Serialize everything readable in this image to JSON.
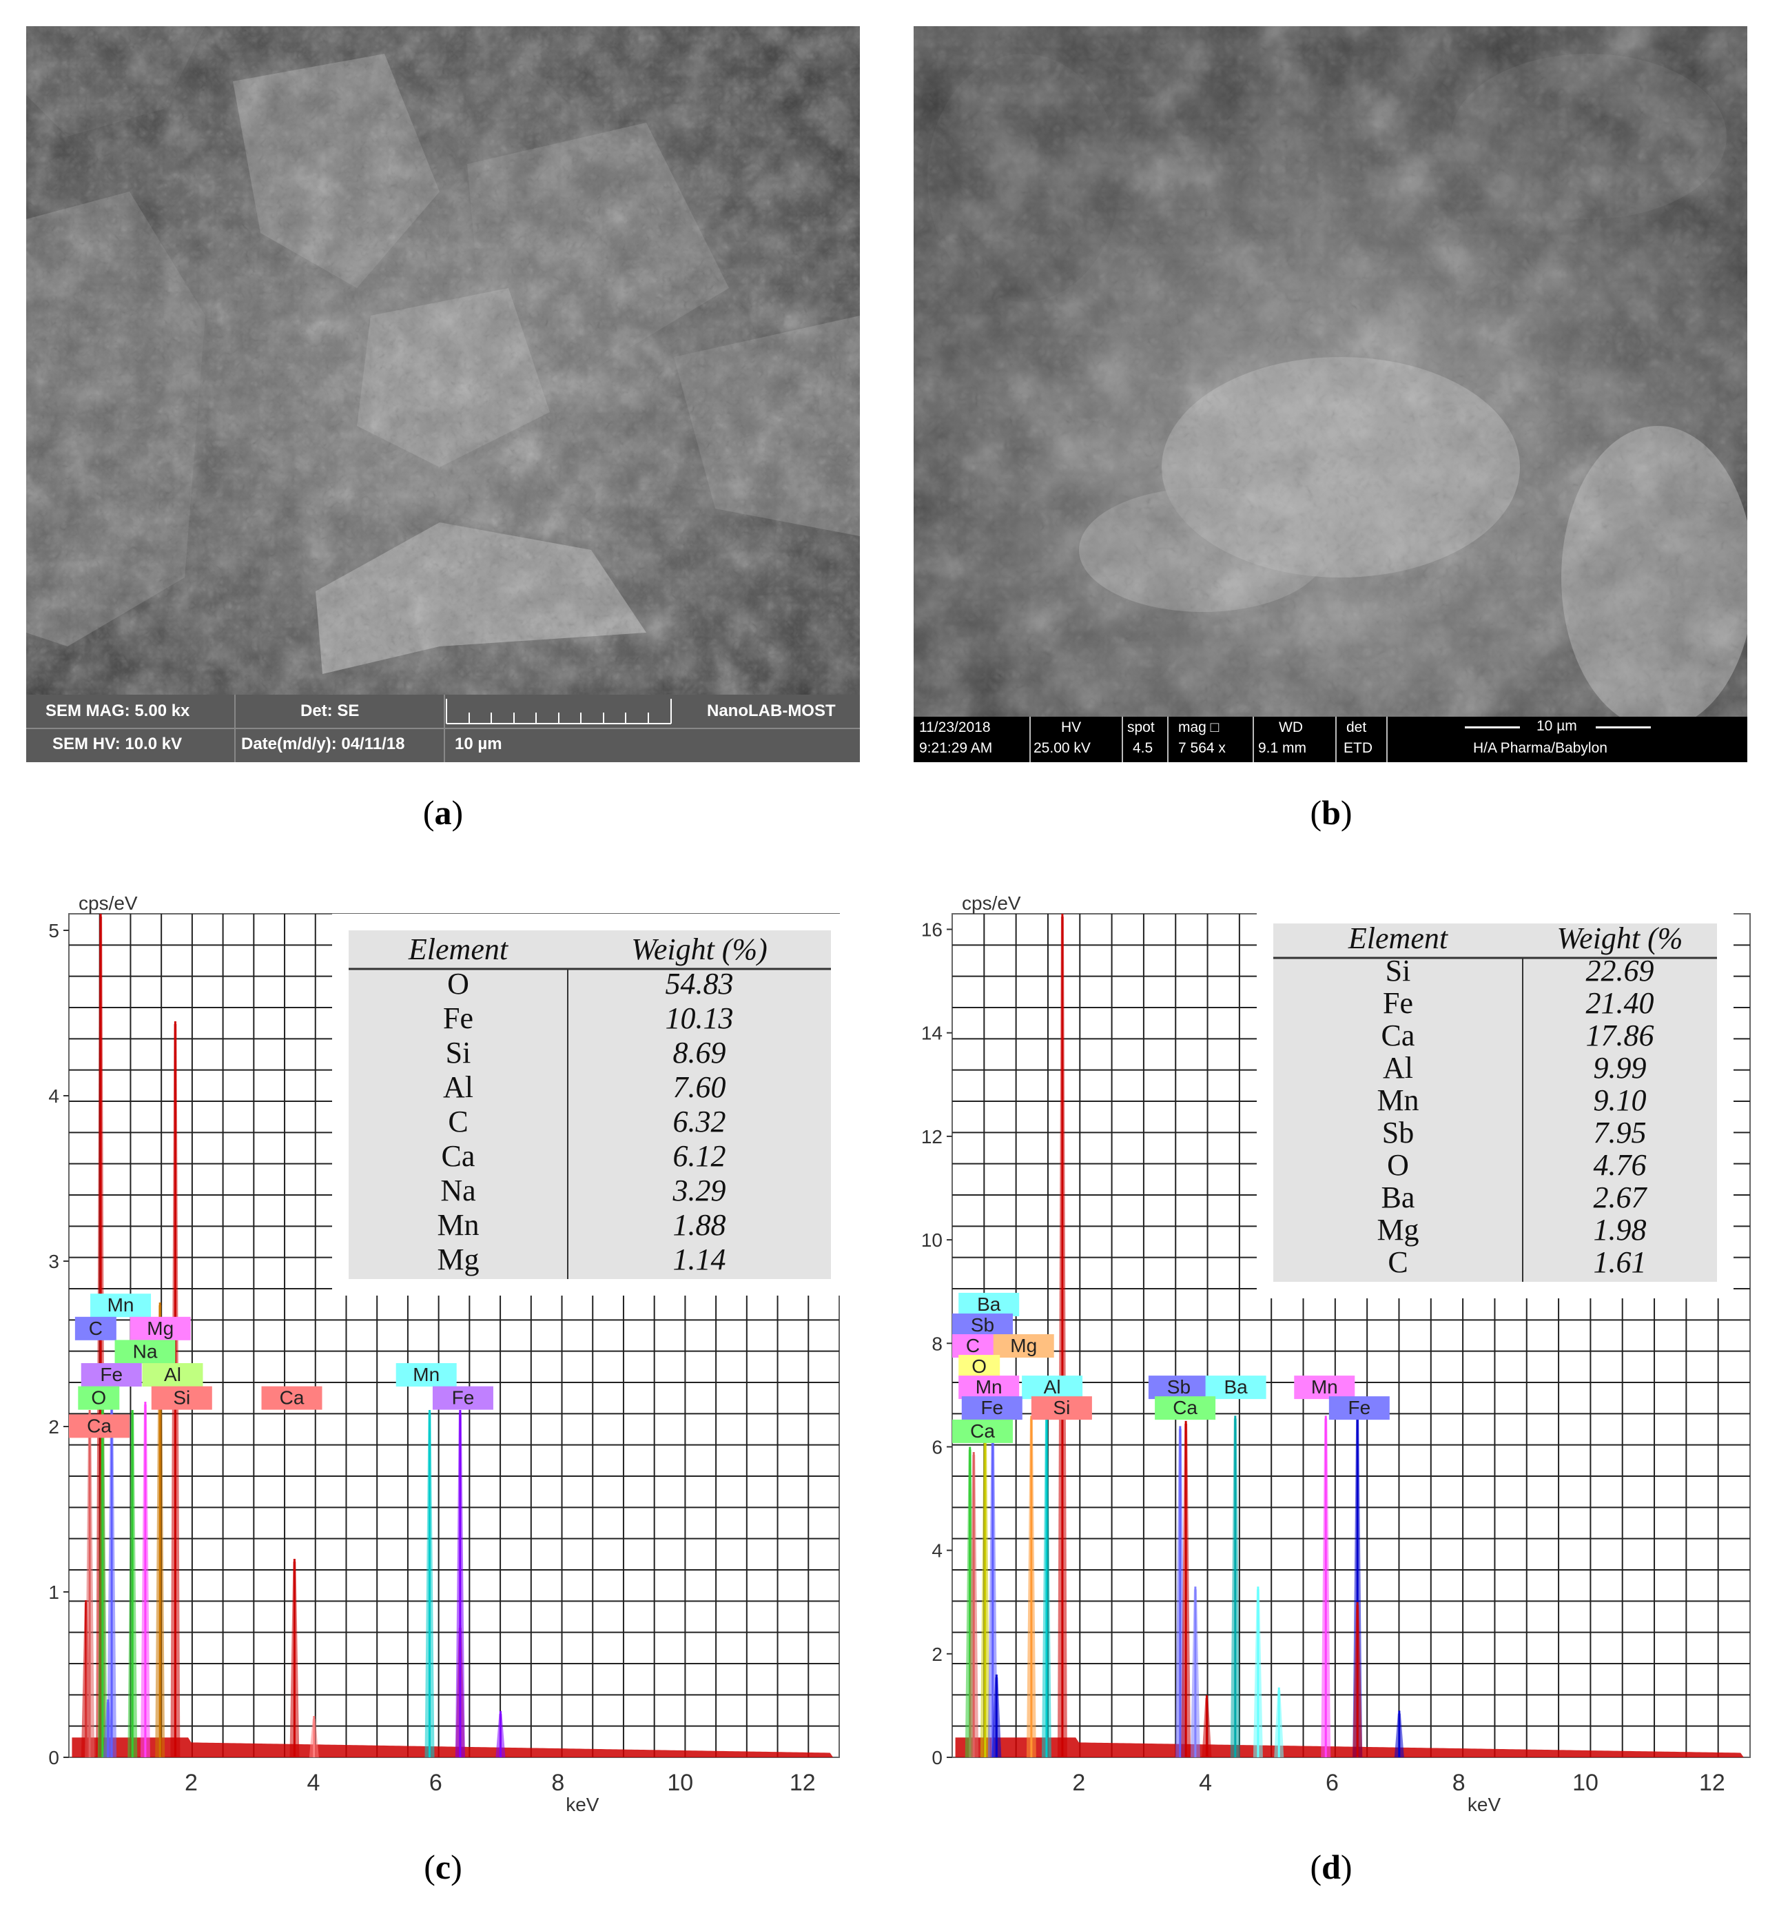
{
  "captions": {
    "a": "a",
    "b": "b",
    "c": "c",
    "d": "d"
  },
  "sem_a": {
    "mag": "SEM MAG: 5.00 kx",
    "det": "Det: SE",
    "lab": "NanoLAB-MOST",
    "hv": "SEM HV: 10.0 kV",
    "date": "Date(m/d/y): 04/11/18",
    "scale": "10 µm"
  },
  "sem_b": {
    "date": "11/23/2018",
    "time": "9:21:29 AM",
    "hv_label": "HV",
    "hv_value": "25.00 kV",
    "spot_label": "spot",
    "spot_value": "4.5",
    "mag_label": "mag □",
    "mag_value": "7 564 x",
    "wd_label": "WD",
    "wd_value": "9.1 mm",
    "det_label": "det",
    "det_value": "ETD",
    "scale": "10 µm",
    "lab": "H/A Pharma/Babylon"
  },
  "chart_data": [
    {
      "type": "bar",
      "panel": "c",
      "ylabel": "cps/eV",
      "xlabel": "keV",
      "xlim": [
        0,
        12.6
      ],
      "ylim": [
        0,
        5.1
      ],
      "xticks": [
        "2",
        "4",
        "6",
        "8",
        "10",
        "12"
      ],
      "yticks": [
        "0",
        "1",
        "2",
        "3",
        "4",
        "5"
      ],
      "grid": true,
      "table": {
        "header": [
          "Element",
          "Weight (%)"
        ],
        "rows": [
          {
            "element": "O",
            "weight": "54.83"
          },
          {
            "element": "Fe",
            "weight": "10.13"
          },
          {
            "element": "Si",
            "weight": "8.69"
          },
          {
            "element": "Al",
            "weight": "7.60"
          },
          {
            "element": "C",
            "weight": "6.32"
          },
          {
            "element": "Ca",
            "weight": "6.12"
          },
          {
            "element": "Na",
            "weight": "3.29"
          },
          {
            "element": "Mn",
            "weight": "1.88"
          },
          {
            "element": "Mg",
            "weight": "1.14"
          }
        ]
      },
      "peaks": [
        {
          "x": 0.28,
          "y": 0.95,
          "color": "#cc0000"
        },
        {
          "x": 0.34,
          "y": 2.1,
          "color": "#e06060"
        },
        {
          "x": 0.52,
          "y": 5.1,
          "color": "#cc0000"
        },
        {
          "x": 0.55,
          "y": 2.15,
          "color": "#33cc33"
        },
        {
          "x": 0.64,
          "y": 0.35,
          "color": "#6060ff"
        },
        {
          "x": 0.7,
          "y": 2.15,
          "color": "#6060ff"
        },
        {
          "x": 1.04,
          "y": 2.1,
          "color": "#33cc33"
        },
        {
          "x": 1.25,
          "y": 2.15,
          "color": "#ff40ff"
        },
        {
          "x": 1.49,
          "y": 2.75,
          "color": "#cc7700"
        },
        {
          "x": 1.74,
          "y": 4.45,
          "color": "#cc0000"
        },
        {
          "x": 3.69,
          "y": 1.2,
          "color": "#cc0000"
        },
        {
          "x": 4.01,
          "y": 0.25,
          "color": "#ff8080"
        },
        {
          "x": 5.9,
          "y": 2.1,
          "color": "#00cccc"
        },
        {
          "x": 6.4,
          "y": 0.8,
          "color": "#cc0000"
        },
        {
          "x": 6.4,
          "y": 2.1,
          "color": "#8000ff"
        },
        {
          "x": 7.06,
          "y": 0.28,
          "color": "#8000ff"
        }
      ],
      "labels": [
        {
          "text": "Mn",
          "x": 0.35,
          "y": 2.67,
          "color": "#80ffff"
        },
        {
          "text": "C",
          "x": 0.1,
          "y": 2.53,
          "color": "#8080ff"
        },
        {
          "text": "Mg",
          "x": 1.0,
          "y": 2.53,
          "color": "#ff80ff"
        },
        {
          "text": "Na",
          "x": 0.75,
          "y": 2.39,
          "color": "#80ff80"
        },
        {
          "text": "Fe",
          "x": 0.2,
          "y": 2.25,
          "color": "#c080ff"
        },
        {
          "text": "Al",
          "x": 1.2,
          "y": 2.25,
          "color": "#c0ff80"
        },
        {
          "text": "O",
          "x": 0.15,
          "y": 2.11,
          "color": "#80ff80"
        },
        {
          "text": "Si",
          "x": 1.35,
          "y": 2.11,
          "color": "#ff8080"
        },
        {
          "text": "Ca",
          "x": 0.0,
          "y": 1.94,
          "color": "#ff8080"
        },
        {
          "text": "Ca",
          "x": 3.15,
          "y": 2.11,
          "color": "#ff8080"
        },
        {
          "text": "Mn",
          "x": 5.35,
          "y": 2.25,
          "color": "#80ffff"
        },
        {
          "text": "Fe",
          "x": 5.95,
          "y": 2.11,
          "color": "#c080ff"
        }
      ]
    },
    {
      "type": "bar",
      "panel": "d",
      "ylabel": "cps/eV",
      "xlabel": "keV",
      "xlim": [
        0,
        12.6
      ],
      "ylim": [
        0,
        16.3
      ],
      "xticks": [
        "2",
        "4",
        "6",
        "8",
        "10",
        "12"
      ],
      "yticks": [
        "0",
        "2",
        "4",
        "6",
        "8",
        "10",
        "12",
        "14",
        "16"
      ],
      "grid": true,
      "table": {
        "header": [
          "Element",
          "Weight (%"
        ],
        "rows": [
          {
            "element": "Si",
            "weight": "22.69"
          },
          {
            "element": "Fe",
            "weight": "21.40"
          },
          {
            "element": "Ca",
            "weight": "17.86"
          },
          {
            "element": "Al",
            "weight": "9.99"
          },
          {
            "element": "Mn",
            "weight": "9.10"
          },
          {
            "element": "Sb",
            "weight": "7.95"
          },
          {
            "element": "O",
            "weight": "4.76"
          },
          {
            "element": "Ba",
            "weight": "2.67"
          },
          {
            "element": "Mg",
            "weight": "1.98"
          },
          {
            "element": "C",
            "weight": "1.61"
          }
        ]
      },
      "peaks": [
        {
          "x": 0.28,
          "y": 6.0,
          "color": "#33cc33"
        },
        {
          "x": 0.34,
          "y": 5.9,
          "color": "#e06060"
        },
        {
          "x": 0.52,
          "y": 6.6,
          "color": "#cccc00"
        },
        {
          "x": 0.64,
          "y": 6.5,
          "color": "#6060ff"
        },
        {
          "x": 0.7,
          "y": 1.6,
          "color": "#0000cc"
        },
        {
          "x": 1.25,
          "y": 6.6,
          "color": "#ff9933"
        },
        {
          "x": 1.49,
          "y": 6.6,
          "color": "#00cccc"
        },
        {
          "x": 1.74,
          "y": 16.3,
          "color": "#cc0000"
        },
        {
          "x": 3.6,
          "y": 6.4,
          "color": "#6060ff"
        },
        {
          "x": 3.69,
          "y": 6.5,
          "color": "#cc0000"
        },
        {
          "x": 3.84,
          "y": 3.3,
          "color": "#8080ff"
        },
        {
          "x": 4.02,
          "y": 1.2,
          "color": "#cc0000"
        },
        {
          "x": 4.47,
          "y": 6.6,
          "color": "#00aaaa"
        },
        {
          "x": 4.83,
          "y": 3.3,
          "color": "#66ffff"
        },
        {
          "x": 5.16,
          "y": 1.35,
          "color": "#66ffff"
        },
        {
          "x": 5.9,
          "y": 6.6,
          "color": "#ff40ff"
        },
        {
          "x": 6.4,
          "y": 6.6,
          "color": "#0000cc"
        },
        {
          "x": 6.4,
          "y": 3.0,
          "color": "#cc0000"
        },
        {
          "x": 7.06,
          "y": 0.9,
          "color": "#0000cc"
        }
      ],
      "labels": [
        {
          "text": "Ba",
          "x": 0.1,
          "y": 8.55,
          "color": "#80ffff"
        },
        {
          "text": "Sb",
          "x": 0.0,
          "y": 8.15,
          "color": "#8080ff"
        },
        {
          "text": "C",
          "x": 0.0,
          "y": 7.75,
          "color": "#ff80ff"
        },
        {
          "text": "Mg",
          "x": 0.65,
          "y": 7.75,
          "color": "#ffc080"
        },
        {
          "text": "O",
          "x": 0.1,
          "y": 7.35,
          "color": "#ffff80"
        },
        {
          "text": "Mn",
          "x": 0.1,
          "y": 6.95,
          "color": "#ff80ff"
        },
        {
          "text": "Al",
          "x": 1.1,
          "y": 6.95,
          "color": "#80ffff"
        },
        {
          "text": "Fe",
          "x": 0.15,
          "y": 6.55,
          "color": "#8080ff"
        },
        {
          "text": "Si",
          "x": 1.25,
          "y": 6.55,
          "color": "#ff8080"
        },
        {
          "text": "Ca",
          "x": 0.0,
          "y": 6.1,
          "color": "#80ff80"
        },
        {
          "text": "Sb",
          "x": 3.1,
          "y": 6.95,
          "color": "#8080ff"
        },
        {
          "text": "Ba",
          "x": 4.0,
          "y": 6.95,
          "color": "#80ffff"
        },
        {
          "text": "Ca",
          "x": 3.2,
          "y": 6.55,
          "color": "#80ff80"
        },
        {
          "text": "Mn",
          "x": 5.4,
          "y": 6.95,
          "color": "#ff80ff"
        },
        {
          "text": "Fe",
          "x": 5.95,
          "y": 6.55,
          "color": "#8080ff"
        }
      ]
    }
  ]
}
